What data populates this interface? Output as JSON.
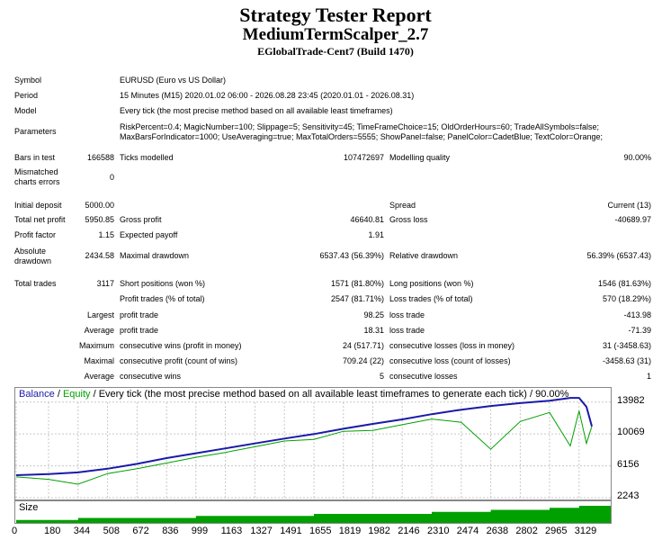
{
  "header": {
    "title": "Strategy Tester Report",
    "expert": "MediumTermScalper_2.7",
    "server": "EGlobalTrade-Cent7 (Build 1470)"
  },
  "settings": {
    "symbol_label": "Symbol",
    "symbol_value": "EURUSD (Euro vs US Dollar)",
    "period_label": "Period",
    "period_value": "15 Minutes (M15) 2020.01.02 06:00 - 2026.08.28 23:45 (2020.01.01 - 2026.08.31)",
    "model_label": "Model",
    "model_value": "Every tick (the most precise method based on all available least timeframes)",
    "parameters_label": "Parameters",
    "parameters_line1": "RiskPercent=0.4; MagicNumber=100; Slippage=5; Sensitivity=45; TimeFrameChoice=15; OldOrderHours=60; TradeAllSymbols=false;",
    "parameters_line2": "MaxBarsForIndicator=1000; UseAveraging=true; MaxTotalOrders=5555; ShowPanel=false; PanelColor=CadetBlue; TextColor=Orange;"
  },
  "test": {
    "bars_label": "Bars in test",
    "bars_value": "166588",
    "ticks_label": "Ticks modelled",
    "ticks_value": "107472697",
    "quality_label": "Modelling quality",
    "quality_value": "90.00%",
    "mismatch_label1": "Mismatched",
    "mismatch_label2": "charts errors",
    "mismatch_value": "0"
  },
  "results": {
    "initial_deposit_label": "Initial deposit",
    "initial_deposit_value": "5000.00",
    "spread_label": "Spread",
    "spread_value": "Current (13)",
    "total_net_profit_label": "Total net profit",
    "total_net_profit_value": "5950.85",
    "gross_profit_label": "Gross profit",
    "gross_profit_value": "46640.81",
    "gross_loss_label": "Gross loss",
    "gross_loss_value": "-40689.97",
    "profit_factor_label": "Profit factor",
    "profit_factor_value": "1.15",
    "expected_payoff_label": "Expected payoff",
    "expected_payoff_value": "1.91",
    "absolute_drawdown_label1": "Absolute",
    "absolute_drawdown_label2": "drawdown",
    "absolute_drawdown_value": "2434.58",
    "maximal_drawdown_label": "Maximal drawdown",
    "maximal_drawdown_value": "6537.43 (56.39%)",
    "relative_drawdown_label": "Relative drawdown",
    "relative_drawdown_value": "56.39% (6537.43)",
    "total_trades_label": "Total trades",
    "total_trades_value": "3117",
    "short_label": "Short positions (won %)",
    "short_value": "1571 (81.80%)",
    "long_label": "Long positions (won %)",
    "long_value": "1546 (81.63%)",
    "profit_trades_label": "Profit trades (% of total)",
    "profit_trades_value": "2547 (81.71%)",
    "loss_trades_label": "Loss trades (% of total)",
    "loss_trades_value": "570 (18.29%)",
    "largest_label": "Largest",
    "largest_profit_label": "profit trade",
    "largest_profit_value": "98.25",
    "largest_loss_label": "loss trade",
    "largest_loss_value": "-413.98",
    "average_label": "Average",
    "average_profit_label": "profit trade",
    "average_profit_value": "18.31",
    "average_loss_label": "loss trade",
    "average_loss_value": "-71.39",
    "maximum_label": "Maximum",
    "max_cons_wins_label": "consecutive wins (profit in money)",
    "max_cons_wins_value": "24 (517.71)",
    "max_cons_losses_label": "consecutive losses (loss in money)",
    "max_cons_losses_value": "31 (-3458.63)",
    "maximal_label": "Maximal",
    "maximal_cons_profit_label": "consecutive profit (count of wins)",
    "maximal_cons_profit_value": "709.24 (22)",
    "maximal_cons_loss_label": "consecutive loss (count of losses)",
    "maximal_cons_loss_value": "-3458.63 (31)",
    "average2_label": "Average",
    "avg_cons_wins_label": "consecutive wins",
    "avg_cons_wins_value": "5",
    "avg_cons_losses_label": "consecutive losses",
    "avg_cons_losses_value": "1"
  },
  "chart_legend": {
    "balance": "Balance",
    "sep1": " / ",
    "equity": "Equity",
    "sep2": " / ",
    "desc": "Every tick (the most precise method based on all available least timeframes to generate each tick) / 90.00%"
  },
  "size_label": "Size",
  "colors": {
    "balance": "#1a1aa8",
    "equity": "#00a000",
    "size_fill": "#00a000",
    "grid": "#c8c8c8"
  },
  "chart_data": {
    "type": "line",
    "ylim": [
      2243,
      15500
    ],
    "xlim": [
      0,
      3300
    ],
    "y_ticks": [
      "13982",
      "10069",
      "6156",
      "2243"
    ],
    "x_ticks": [
      "0",
      "180",
      "344",
      "508",
      "672",
      "836",
      "999",
      "1163",
      "1327",
      "1491",
      "1655",
      "1819",
      "1982",
      "2146",
      "2310",
      "2474",
      "2638",
      "2802",
      "2965",
      "3129"
    ],
    "series": [
      {
        "name": "Balance",
        "x": [
          0,
          180,
          344,
          508,
          672,
          836,
          999,
          1163,
          1327,
          1491,
          1655,
          1819,
          1982,
          2146,
          2310,
          2474,
          2638,
          2802,
          2965,
          3080,
          3129,
          3170,
          3200
        ],
        "y": [
          5000,
          5150,
          5350,
          5800,
          6400,
          7100,
          7700,
          8300,
          8900,
          9500,
          10050,
          10700,
          11300,
          11850,
          12500,
          13050,
          13500,
          13850,
          14150,
          14500,
          14500,
          13400,
          11000
        ]
      },
      {
        "name": "Equity",
        "x": [
          0,
          180,
          344,
          508,
          672,
          836,
          999,
          1163,
          1327,
          1491,
          1655,
          1819,
          1982,
          2146,
          2310,
          2474,
          2638,
          2802,
          2965,
          3080,
          3129,
          3170,
          3200
        ],
        "y": [
          4800,
          4500,
          3900,
          5200,
          5800,
          6500,
          7200,
          7800,
          8500,
          9200,
          9400,
          10400,
          10500,
          11200,
          11900,
          11500,
          8200,
          11600,
          12700,
          8600,
          12900,
          8900,
          11000
        ]
      }
    ],
    "size": {
      "x": [
        0,
        344,
        999,
        1655,
        2310,
        2638,
        2965,
        3129,
        3200
      ],
      "y": [
        1,
        2,
        3,
        4,
        5,
        6,
        7,
        8,
        8
      ]
    }
  }
}
